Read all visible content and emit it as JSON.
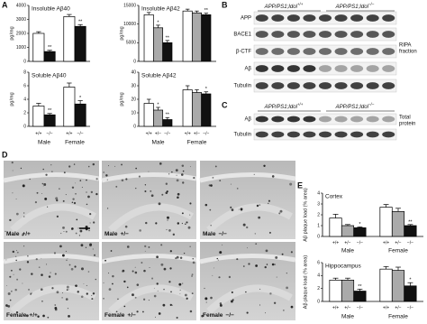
{
  "panel_labels": [
    "A",
    "B",
    "C",
    "D",
    "E"
  ],
  "chart_data": [
    {
      "type": "bar",
      "title": "Insoluble Aβ40",
      "ylabel": "pg/mg",
      "ylim": [
        0,
        4000
      ],
      "yticks": [
        0,
        1000,
        2000,
        3000,
        4000
      ],
      "series": [
        {
          "color": "#ffffff",
          "values": [
            2000,
            3200
          ],
          "errors": [
            120,
            150
          ]
        },
        {
          "color": "#111111",
          "values": [
            700,
            2500
          ],
          "errors": [
            90,
            130
          ],
          "significance": [
            "**",
            "**"
          ]
        }
      ]
    },
    {
      "type": "bar",
      "title": "Soluble Aβ40",
      "ylabel": "pg/mg",
      "ylim": [
        0,
        8
      ],
      "yticks": [
        0,
        2,
        4,
        6,
        8
      ],
      "categories": [
        "Male",
        "Female"
      ],
      "series": [
        {
          "name": "+/+",
          "color": "#ffffff",
          "values": [
            3,
            5.8
          ],
          "errors": [
            0.4,
            0.6
          ]
        },
        {
          "name": "−/−",
          "color": "#111111",
          "values": [
            1.7,
            3.3
          ],
          "errors": [
            0.2,
            0.5
          ],
          "significance": [
            "**",
            "*"
          ]
        }
      ]
    },
    {
      "type": "bar",
      "title": "Insoluble Aβ42",
      "ylabel": "pg/mg",
      "ylim": [
        0,
        15000
      ],
      "yticks": [
        0,
        5000,
        10000,
        15000
      ],
      "series": [
        {
          "color": "#ffffff",
          "values": [
            12500,
            13500
          ],
          "errors": [
            600,
            500
          ]
        },
        {
          "color": "#aaaaaa",
          "values": [
            9000,
            13000
          ],
          "errors": [
            700,
            500
          ],
          "significance": [
            "*",
            null
          ]
        },
        {
          "color": "#111111",
          "values": [
            5000,
            12500
          ],
          "errors": [
            600,
            400
          ],
          "significance": [
            "**",
            "**"
          ]
        }
      ]
    },
    {
      "type": "bar",
      "title": "Soluble Aβ42",
      "ylabel": "pg/mg",
      "ylim": [
        0,
        40
      ],
      "yticks": [
        0,
        10,
        20,
        30,
        40
      ],
      "categories": [
        "Male",
        "Female"
      ],
      "series": [
        {
          "name": "+/+",
          "color": "#ffffff",
          "values": [
            17,
            27
          ],
          "errors": [
            3,
            3
          ]
        },
        {
          "name": "+/−",
          "color": "#aaaaaa",
          "values": [
            12,
            25
          ],
          "errors": [
            2,
            2
          ],
          "significance": [
            "*",
            null
          ]
        },
        {
          "name": "−/−",
          "color": "#111111",
          "values": [
            5,
            24
          ],
          "errors": [
            1.5,
            1.5
          ],
          "significance": [
            "**",
            "*"
          ]
        }
      ]
    },
    {
      "type": "bar",
      "title": "Cortex",
      "ylabel": "Aβ plaque load (% area)",
      "ylim": [
        0,
        4
      ],
      "yticks": [
        0,
        1,
        2,
        3,
        4
      ],
      "categories": [
        "Male",
        "Female"
      ],
      "series": [
        {
          "name": "+/+",
          "color": "#ffffff",
          "values": [
            1.7,
            2.7
          ],
          "errors": [
            0.35,
            0.25
          ]
        },
        {
          "name": "+/−",
          "color": "#aaaaaa",
          "values": [
            1.0,
            2.3
          ],
          "errors": [
            0.1,
            0.3
          ]
        },
        {
          "name": "−/−",
          "color": "#111111",
          "values": [
            0.8,
            1.0
          ],
          "errors": [
            0.08,
            0.1
          ],
          "significance": [
            "*",
            "**"
          ]
        }
      ]
    },
    {
      "type": "bar",
      "title": "Hippocampus",
      "ylabel": "Aβ plaque load (% area)",
      "ylim": [
        0,
        6
      ],
      "yticks": [
        0,
        2,
        4,
        6
      ],
      "categories": [
        "Male",
        "Female"
      ],
      "series": [
        {
          "name": "+/+",
          "color": "#ffffff",
          "values": [
            3.3,
            5.0
          ],
          "errors": [
            0.3,
            0.4
          ]
        },
        {
          "name": "+/−",
          "color": "#aaaaaa",
          "values": [
            3.3,
            4.8
          ],
          "errors": [
            0.3,
            0.5
          ]
        },
        {
          "name": "−/−",
          "color": "#111111",
          "values": [
            1.6,
            2.4
          ],
          "errors": [
            0.3,
            0.5
          ],
          "significance": [
            "**",
            "*"
          ]
        }
      ]
    }
  ],
  "blot_b": {
    "headers": [
      {
        "text": "APP/PS1;Idol",
        "superscript": "+/+"
      },
      {
        "text": "APP/PS1;Idol",
        "superscript": "−/−"
      }
    ],
    "rows": [
      "APP",
      "BACE1",
      "β-CTF",
      "Aβ",
      "Tubulin"
    ],
    "fraction": [
      "RIPA",
      "fraction"
    ]
  },
  "blot_c": {
    "headers": [
      {
        "text": "APP/PS1;Idol",
        "superscript": "+/+"
      },
      {
        "text": "APP/PS1;Idol",
        "superscript": "−/−"
      }
    ],
    "rows": [
      "Aβ",
      "Tubulin"
    ],
    "fraction": [
      "Total",
      "protein"
    ]
  },
  "micrographs": [
    {
      "sex": "Male",
      "genotype": "+/+"
    },
    {
      "sex": "Male",
      "genotype": "+/−"
    },
    {
      "sex": "Male",
      "genotype": "−/−"
    },
    {
      "sex": "Female",
      "genotype": "+/+"
    },
    {
      "sex": "Female",
      "genotype": "+/−"
    },
    {
      "sex": "Female",
      "genotype": "−/−"
    }
  ]
}
